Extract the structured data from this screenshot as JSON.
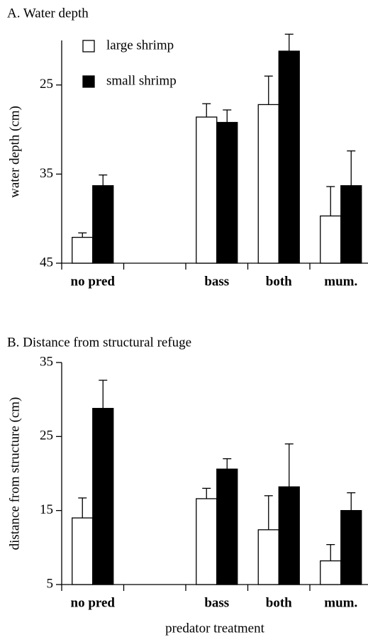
{
  "chart_data": [
    {
      "type": "bar",
      "title": "A. Water depth",
      "ylabel": "water depth (cm)",
      "categories": [
        "no pred",
        null,
        "bass",
        "both",
        "mum."
      ],
      "series": [
        {
          "name": "large shrimp",
          "color": "#ffffff",
          "values": [
            42.1,
            null,
            28.6,
            27.2,
            39.7
          ],
          "errors": [
            0.5,
            null,
            1.5,
            3.2,
            3.3
          ]
        },
        {
          "name": "small shrimp",
          "color": "#000000",
          "values": [
            36.3,
            null,
            29.2,
            21.2,
            36.3
          ],
          "errors": [
            1.2,
            null,
            1.4,
            1.9,
            3.9
          ]
        }
      ],
      "ylim": [
        45,
        20
      ],
      "yticks": [
        25,
        35,
        45
      ]
    },
    {
      "type": "bar",
      "title": "B. Distance from structural refuge",
      "ylabel": "distance from structure (cm)",
      "xlabel": "predator treatment",
      "categories": [
        "no pred",
        null,
        "bass",
        "both",
        "mum."
      ],
      "series": [
        {
          "name": "large shrimp",
          "color": "#ffffff",
          "values": [
            14,
            null,
            16.6,
            12.4,
            8.2
          ],
          "errors": [
            2.7,
            null,
            1.4,
            4.6,
            2.2
          ]
        },
        {
          "name": "small shrimp",
          "color": "#000000",
          "values": [
            28.8,
            null,
            20.6,
            18.2,
            15
          ],
          "errors": [
            3.8,
            null,
            1.4,
            5.8,
            2.4
          ]
        }
      ],
      "ylim": [
        5,
        35
      ],
      "yticks": [
        5,
        15,
        25,
        35
      ]
    }
  ]
}
